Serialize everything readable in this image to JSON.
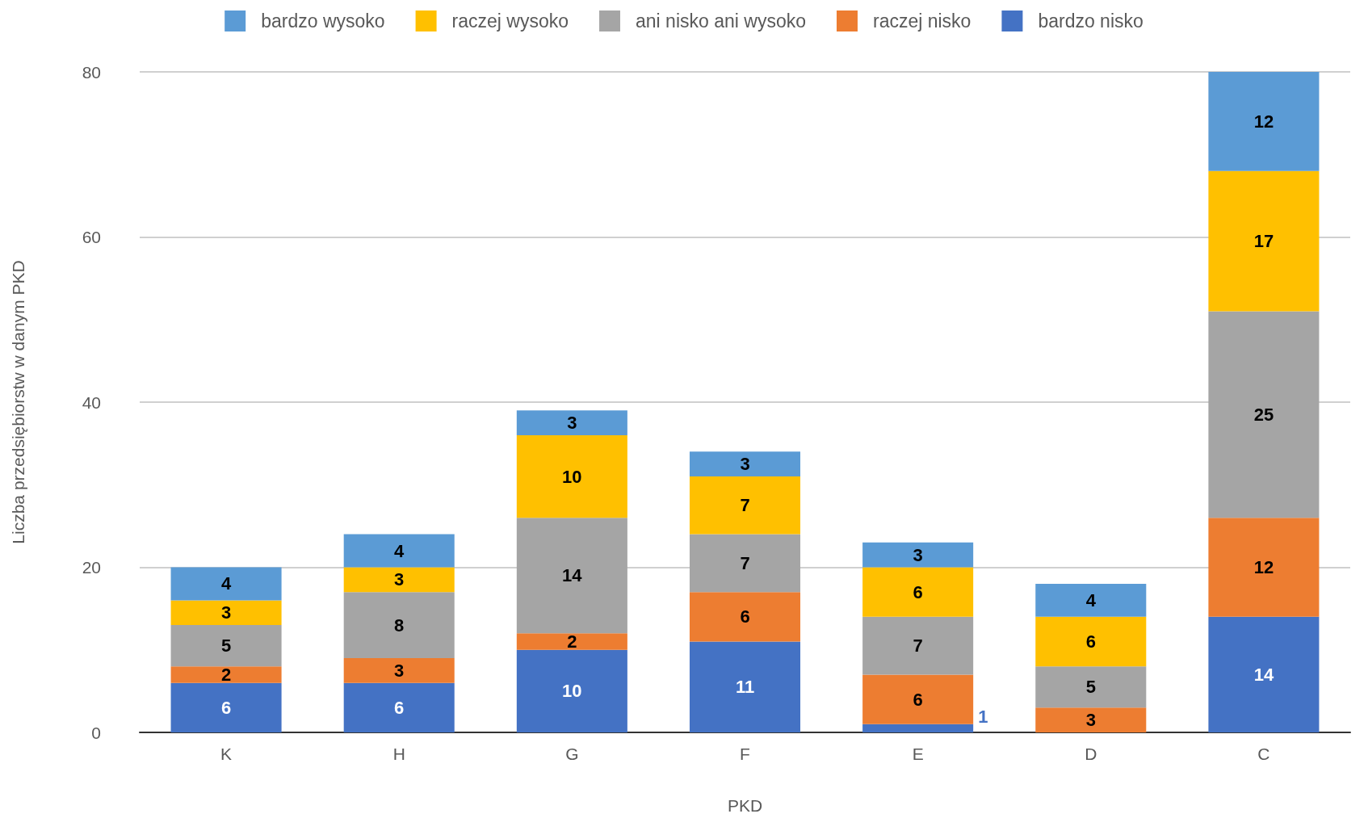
{
  "chart_data": {
    "type": "bar",
    "stacked": true,
    "xlabel": "PKD",
    "ylabel": "Liczba przedsiębiorstw w danym PKD",
    "categories": [
      "K",
      "H",
      "G",
      "F",
      "E",
      "D",
      "C"
    ],
    "series": [
      {
        "name": "bardzo nisko",
        "color": "#4472c4",
        "values": [
          6,
          6,
          10,
          11,
          1,
          0,
          14
        ],
        "value_labels": [
          "6",
          "6",
          "10",
          "11",
          "1",
          null,
          "14"
        ]
      },
      {
        "name": "raczej nisko",
        "color": "#ed7d31",
        "values": [
          2,
          3,
          2,
          6,
          6,
          3,
          12
        ],
        "value_labels": [
          "2",
          "3",
          "2",
          "6",
          "6",
          "3",
          "12"
        ]
      },
      {
        "name": "ani nisko ani wysoko",
        "color": "#a5a5a5",
        "values": [
          5,
          8,
          14,
          7,
          7,
          5,
          25
        ],
        "value_labels": [
          "5",
          "8",
          "14",
          "7",
          "7",
          "5",
          "25"
        ]
      },
      {
        "name": "raczej wysoko",
        "color": "#ffc000",
        "values": [
          3,
          3,
          10,
          7,
          6,
          6,
          17
        ],
        "value_labels": [
          "3",
          "3",
          "10",
          "7",
          "6",
          "6",
          "17"
        ]
      },
      {
        "name": "bardzo wysoko",
        "color": "#5b9bd5",
        "values": [
          4,
          4,
          3,
          3,
          3,
          4,
          12
        ],
        "value_labels": [
          "4",
          "4",
          "3",
          "3",
          "3",
          "4",
          "12"
        ]
      }
    ],
    "ylim": [
      0,
      80
    ],
    "yticks": [
      0,
      20,
      40,
      60,
      80
    ],
    "grid": "y",
    "legend": "top"
  }
}
